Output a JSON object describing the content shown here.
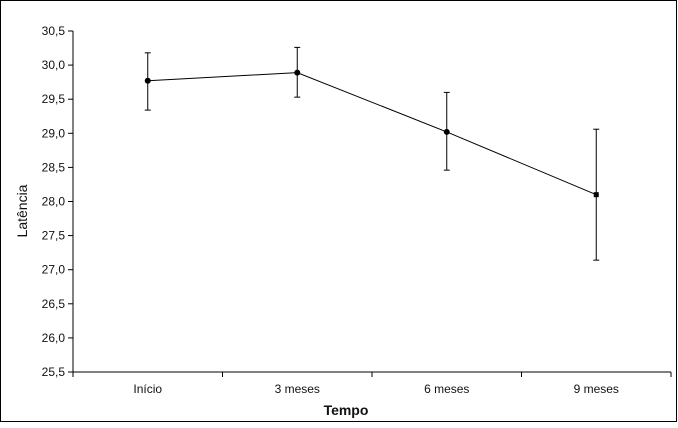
{
  "chart_data": {
    "type": "line",
    "title": "",
    "xlabel": "Tempo",
    "ylabel": "Latência",
    "categories": [
      "Início",
      "3 meses",
      "6 meses",
      "9 meses"
    ],
    "series": [
      {
        "values": [
          29.77,
          29.89,
          29.02,
          28.1
        ],
        "error_upper": [
          30.18,
          30.26,
          29.6,
          29.06
        ],
        "error_lower": [
          29.34,
          29.53,
          28.46,
          27.14
        ],
        "color": "#000000"
      }
    ],
    "ylim": [
      25.5,
      30.5
    ],
    "yticks": [
      25.5,
      26.0,
      26.5,
      27.0,
      27.5,
      28.0,
      28.5,
      29.0,
      29.5,
      30.0,
      30.5
    ],
    "ytick_labels": [
      "25,5",
      "26,0",
      "26,5",
      "27,0",
      "27,5",
      "28,0",
      "28,5",
      "29,0",
      "29,5",
      "30,0",
      "30,5"
    ],
    "grid": false,
    "legend": "none"
  }
}
